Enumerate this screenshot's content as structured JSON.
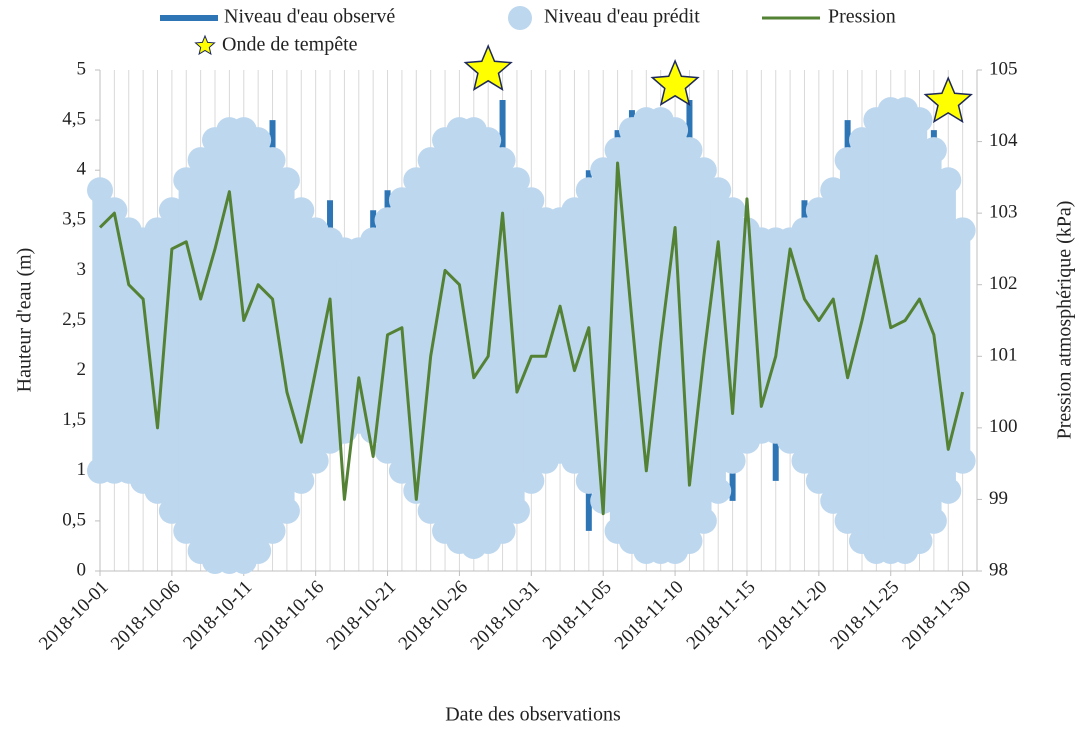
{
  "chart_data": {
    "type": "line",
    "x_label": "Date des observations",
    "y_label": "Hauteur d'eau (m)",
    "y2_label": "Pression atmosphérique (kPa)",
    "x": [
      "2018-10-01",
      "2018-10-02",
      "2018-10-03",
      "2018-10-04",
      "2018-10-05",
      "2018-10-06",
      "2018-10-07",
      "2018-10-08",
      "2018-10-09",
      "2018-10-10",
      "2018-10-11",
      "2018-10-12",
      "2018-10-13",
      "2018-10-14",
      "2018-10-15",
      "2018-10-16",
      "2018-10-17",
      "2018-10-18",
      "2018-10-19",
      "2018-10-20",
      "2018-10-21",
      "2018-10-22",
      "2018-10-23",
      "2018-10-24",
      "2018-10-25",
      "2018-10-26",
      "2018-10-27",
      "2018-10-28",
      "2018-10-29",
      "2018-10-30",
      "2018-10-31",
      "2018-11-01",
      "2018-11-02",
      "2018-11-03",
      "2018-11-04",
      "2018-11-05",
      "2018-11-06",
      "2018-11-07",
      "2018-11-08",
      "2018-11-09",
      "2018-11-10",
      "2018-11-11",
      "2018-11-12",
      "2018-11-13",
      "2018-11-14",
      "2018-11-15",
      "2018-11-16",
      "2018-11-17",
      "2018-11-18",
      "2018-11-19",
      "2018-11-20",
      "2018-11-21",
      "2018-11-22",
      "2018-11-23",
      "2018-11-24",
      "2018-11-25",
      "2018-11-26",
      "2018-11-27",
      "2018-11-28",
      "2018-11-29",
      "2018-11-30"
    ],
    "series": [
      {
        "name": "Niveau d'eau observé",
        "color": "#2e75b6",
        "values": [
          [
            1.0,
            3.8
          ],
          [
            0.9,
            3.6
          ],
          [
            1.0,
            3.4
          ],
          [
            0.9,
            3.3
          ],
          [
            0.7,
            3.4
          ],
          [
            0.6,
            3.6
          ],
          [
            0.4,
            3.9
          ],
          [
            0.2,
            4.1
          ],
          [
            0.1,
            4.3
          ],
          [
            0.1,
            4.4
          ],
          [
            0.05,
            4.4
          ],
          [
            0.2,
            4.3
          ],
          [
            0.4,
            4.5
          ],
          [
            0.6,
            3.9
          ],
          [
            0.9,
            3.6
          ],
          [
            1.1,
            3.4
          ],
          [
            1.3,
            3.7
          ],
          [
            1.3,
            3.2
          ],
          [
            1.4,
            3.2
          ],
          [
            1.4,
            3.6
          ],
          [
            1.2,
            3.8
          ],
          [
            1.0,
            3.7
          ],
          [
            0.7,
            3.9
          ],
          [
            0.5,
            4.1
          ],
          [
            0.4,
            4.3
          ],
          [
            0.25,
            4.4
          ],
          [
            0.25,
            4.4
          ],
          [
            0.3,
            4.3
          ],
          [
            0.4,
            4.7
          ],
          [
            0.6,
            3.9
          ],
          [
            0.9,
            3.7
          ],
          [
            1.1,
            3.5
          ],
          [
            1.2,
            3.5
          ],
          [
            1.1,
            3.7
          ],
          [
            0.4,
            4.0
          ],
          [
            0.7,
            4.0
          ],
          [
            0.4,
            4.4
          ],
          [
            0.3,
            4.6
          ],
          [
            0.2,
            4.5
          ],
          [
            0.2,
            4.5
          ],
          [
            0.2,
            4.4
          ],
          [
            0.3,
            4.7
          ],
          [
            0.5,
            4.0
          ],
          [
            0.8,
            3.8
          ],
          [
            0.7,
            3.7
          ],
          [
            1.3,
            3.4
          ],
          [
            1.4,
            3.3
          ],
          [
            0.9,
            3.3
          ],
          [
            1.3,
            3.3
          ],
          [
            1.1,
            3.7
          ],
          [
            0.9,
            3.6
          ],
          [
            0.7,
            3.8
          ],
          [
            0.5,
            4.5
          ],
          [
            0.2,
            4.3
          ],
          [
            0.15,
            4.5
          ],
          [
            0.2,
            4.6
          ],
          [
            0.2,
            4.6
          ],
          [
            0.3,
            4.5
          ],
          [
            0.5,
            4.4
          ],
          [
            0.8,
            3.9
          ],
          [
            1.1,
            3.4
          ]
        ]
      },
      {
        "name": "Niveau d'eau prédit",
        "color": "#bdd7ee",
        "values": [
          [
            1.0,
            3.8
          ],
          [
            1.0,
            3.6
          ],
          [
            1.0,
            3.4
          ],
          [
            0.9,
            3.3
          ],
          [
            0.8,
            3.4
          ],
          [
            0.6,
            3.6
          ],
          [
            0.4,
            3.9
          ],
          [
            0.2,
            4.1
          ],
          [
            0.1,
            4.3
          ],
          [
            0.1,
            4.4
          ],
          [
            0.1,
            4.4
          ],
          [
            0.2,
            4.3
          ],
          [
            0.4,
            4.1
          ],
          [
            0.6,
            3.9
          ],
          [
            0.9,
            3.6
          ],
          [
            1.1,
            3.4
          ],
          [
            1.3,
            3.3
          ],
          [
            1.4,
            3.2
          ],
          [
            1.5,
            3.2
          ],
          [
            1.4,
            3.3
          ],
          [
            1.2,
            3.5
          ],
          [
            1.0,
            3.7
          ],
          [
            0.8,
            3.9
          ],
          [
            0.6,
            4.1
          ],
          [
            0.4,
            4.3
          ],
          [
            0.3,
            4.4
          ],
          [
            0.25,
            4.4
          ],
          [
            0.3,
            4.3
          ],
          [
            0.4,
            4.1
          ],
          [
            0.6,
            3.9
          ],
          [
            0.9,
            3.7
          ],
          [
            1.1,
            3.5
          ],
          [
            1.2,
            3.5
          ],
          [
            1.1,
            3.6
          ],
          [
            0.9,
            3.8
          ],
          [
            0.7,
            4.0
          ],
          [
            0.4,
            4.2
          ],
          [
            0.3,
            4.4
          ],
          [
            0.2,
            4.5
          ],
          [
            0.2,
            4.5
          ],
          [
            0.2,
            4.4
          ],
          [
            0.3,
            4.2
          ],
          [
            0.5,
            4.0
          ],
          [
            0.8,
            3.8
          ],
          [
            1.1,
            3.6
          ],
          [
            1.3,
            3.4
          ],
          [
            1.4,
            3.3
          ],
          [
            1.4,
            3.3
          ],
          [
            1.3,
            3.3
          ],
          [
            1.1,
            3.4
          ],
          [
            0.9,
            3.6
          ],
          [
            0.7,
            3.8
          ],
          [
            0.5,
            4.1
          ],
          [
            0.3,
            4.3
          ],
          [
            0.2,
            4.5
          ],
          [
            0.2,
            4.6
          ],
          [
            0.2,
            4.6
          ],
          [
            0.3,
            4.5
          ],
          [
            0.5,
            4.2
          ],
          [
            0.8,
            3.9
          ],
          [
            1.1,
            3.4
          ]
        ]
      },
      {
        "name": "Pression",
        "color": "#548235",
        "axis": "y2",
        "values": [
          102.8,
          103.0,
          102.0,
          101.8,
          100.0,
          102.5,
          102.6,
          101.8,
          102.5,
          103.3,
          101.5,
          102.0,
          101.8,
          100.5,
          99.8,
          100.8,
          101.8,
          99.0,
          100.7,
          99.6,
          101.3,
          101.4,
          99.0,
          101.0,
          102.2,
          102.0,
          100.7,
          101.0,
          103.0,
          100.5,
          101.0,
          101.0,
          101.7,
          100.8,
          101.4,
          98.8,
          103.7,
          101.5,
          99.4,
          101.2,
          102.8,
          99.2,
          101.0,
          102.6,
          100.2,
          103.2,
          100.3,
          101.0,
          102.5,
          101.8,
          101.5,
          101.8,
          100.7,
          101.5,
          102.4,
          101.4,
          101.5,
          101.8,
          101.3,
          99.7,
          100.5
        ]
      }
    ],
    "storm_surges": {
      "name": "Onde de tempête",
      "color": "#ffff00",
      "x": [
        "2018-10-28",
        "2018-11-10",
        "2018-11-29"
      ],
      "values": [
        5.0,
        4.85,
        4.68
      ]
    },
    "xlim": [
      "2018-10-01",
      "2018-12-01"
    ],
    "xticks": [
      "2018-10-01",
      "2018-10-06",
      "2018-10-11",
      "2018-10-16",
      "2018-10-21",
      "2018-10-26",
      "2018-10-31",
      "2018-11-05",
      "2018-11-10",
      "2018-11-15",
      "2018-11-20",
      "2018-11-25",
      "2018-11-30"
    ],
    "ylim": [
      0,
      5
    ],
    "yticks": [
      0,
      {
        "value": 0.5,
        "label": "0,5"
      },
      1,
      {
        "value": 1.5,
        "label": "1,5"
      },
      2,
      {
        "value": 2.5,
        "label": "2,5"
      },
      3,
      {
        "value": 3.5,
        "label": "3,5"
      },
      4,
      {
        "value": 4.5,
        "label": "4,5"
      },
      5
    ],
    "y2lim": [
      98,
      105
    ],
    "y2ticks": [
      98,
      99,
      100,
      101,
      102,
      103,
      104,
      105
    ],
    "grid": true
  }
}
